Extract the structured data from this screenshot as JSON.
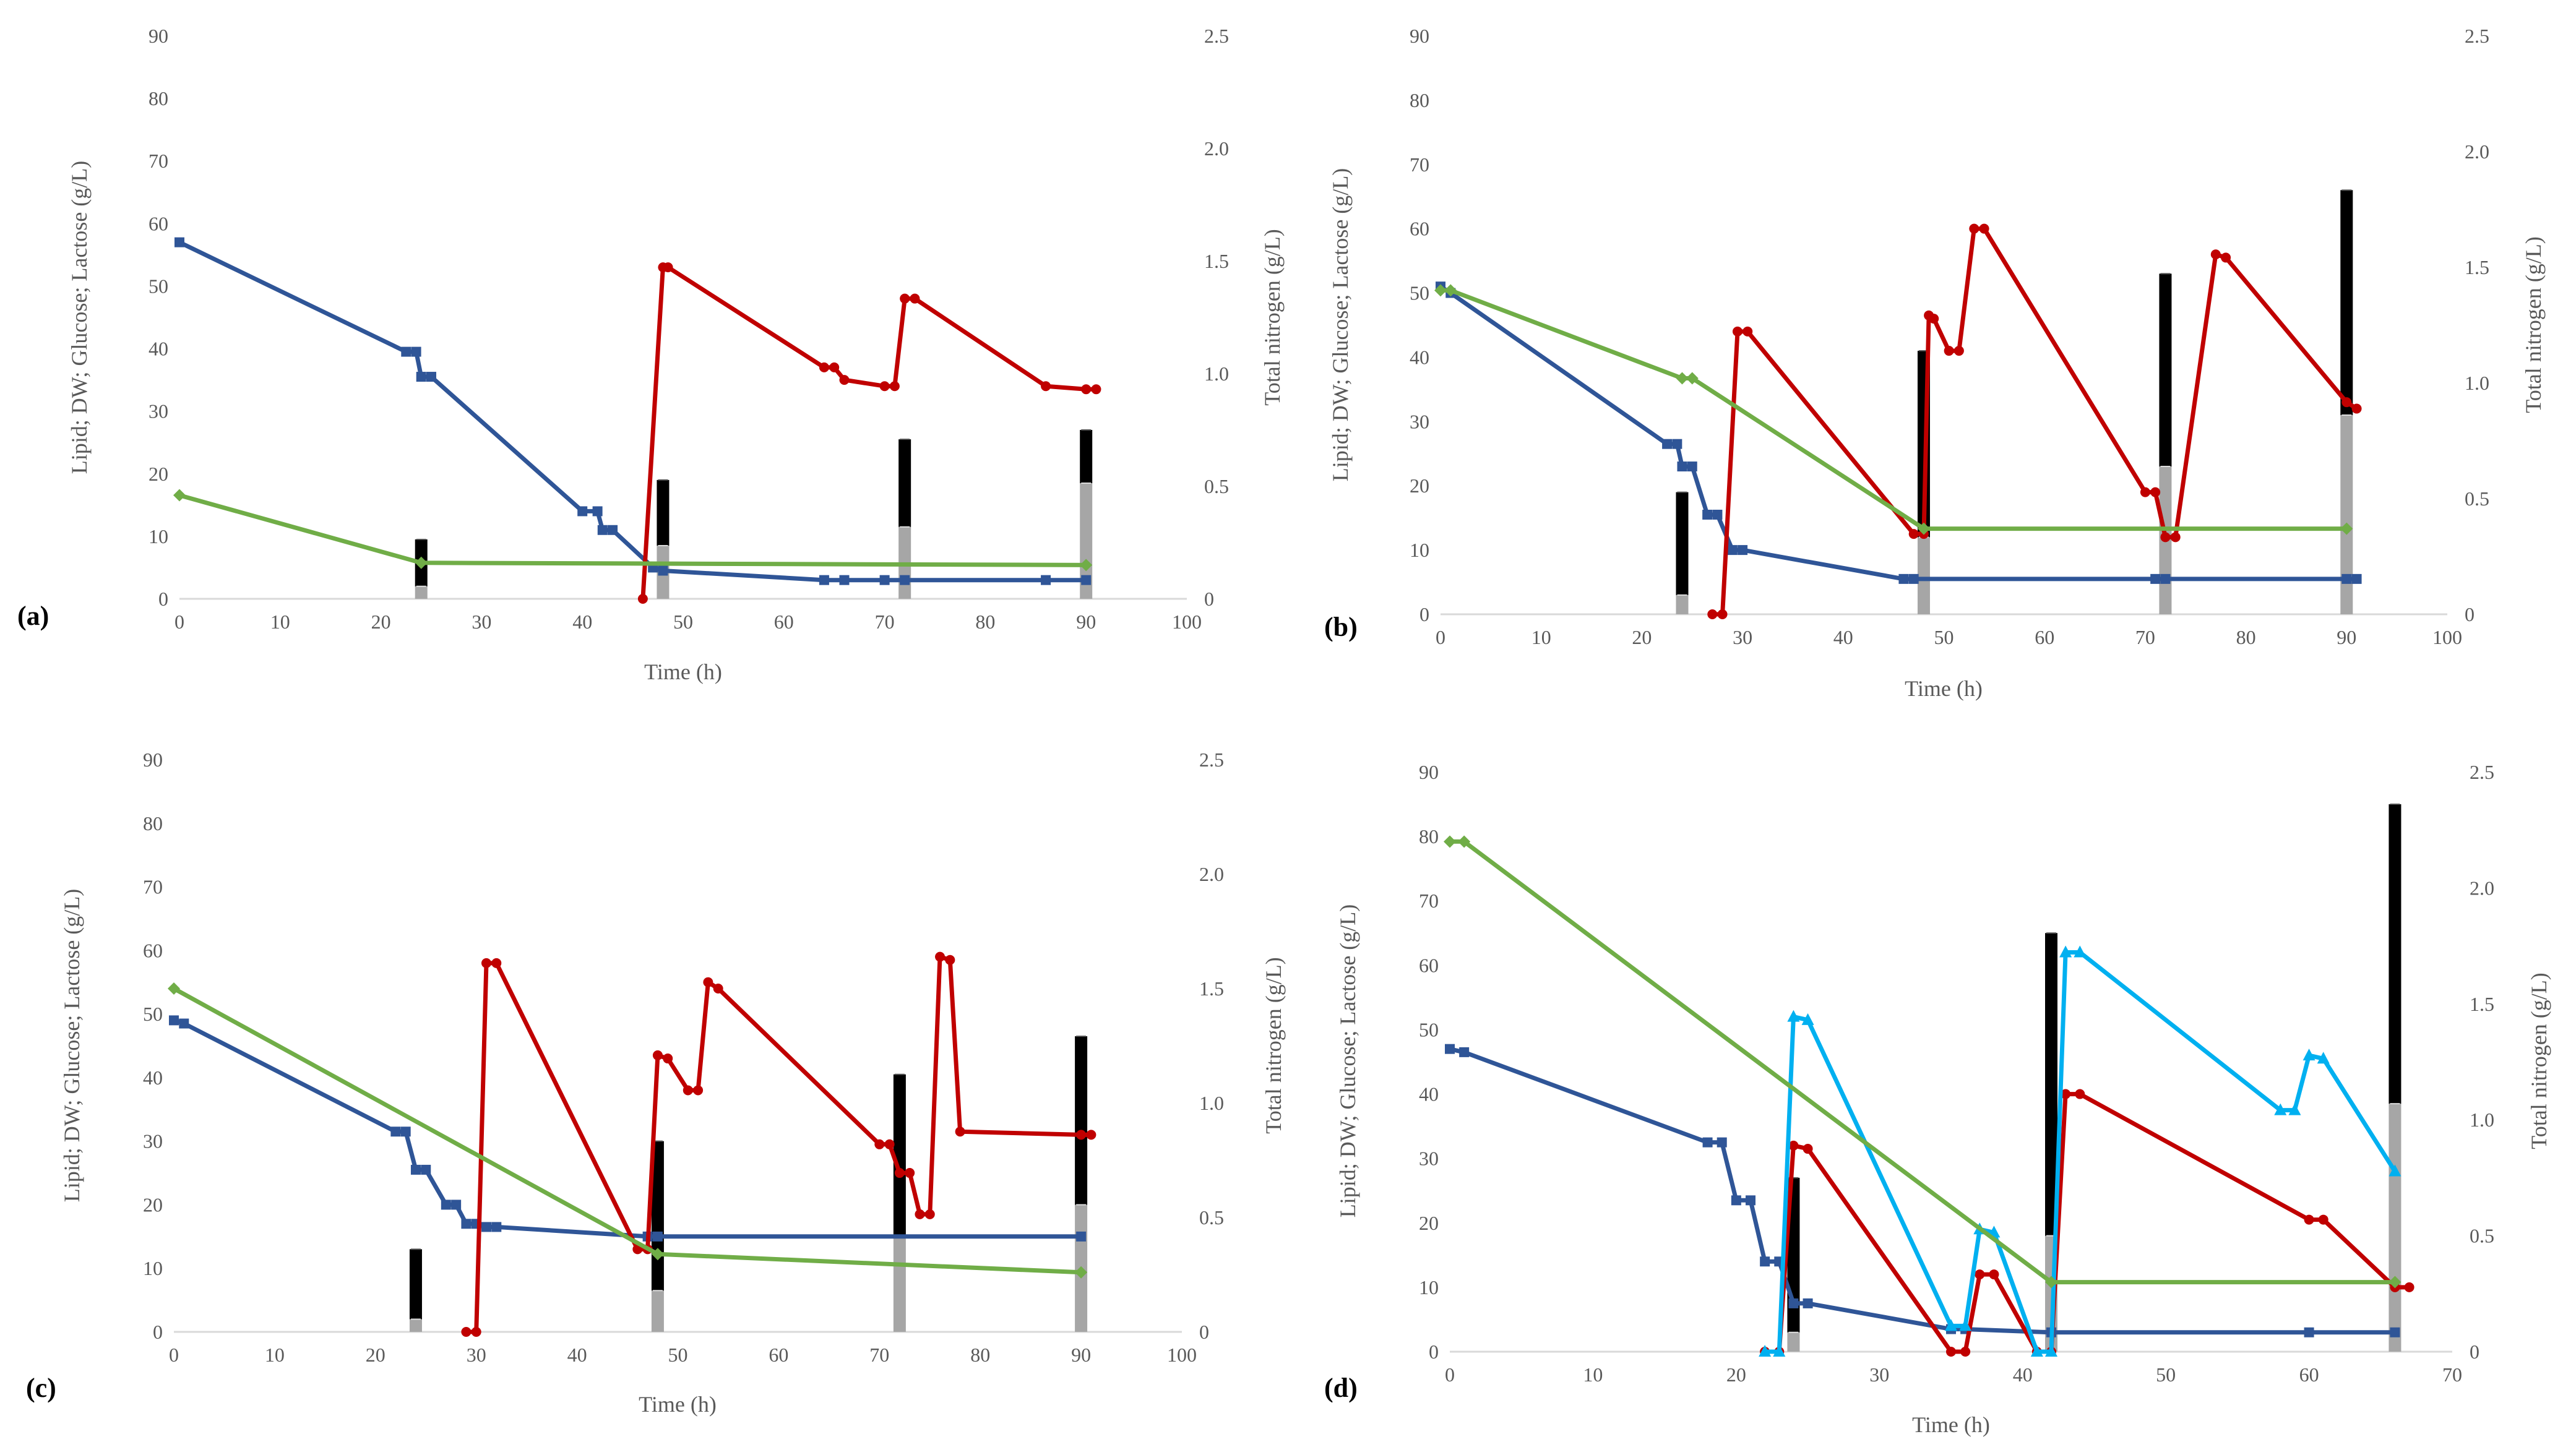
{
  "figure": {
    "colors": {
      "glucose": "#2F5597",
      "lipid_dw_red": "#C00000",
      "nitrogen": "#70AD47",
      "lactose_cyan": "#00B0F0",
      "bar_black": "#000000",
      "bar_grey": "#A6A6A6",
      "axis": "#D9D9D9",
      "text": "#595959"
    },
    "glyphs": {
      "square": "■",
      "circle": "●",
      "diamond": "◆",
      "triangle": "▲"
    }
  },
  "chart_data": [
    {
      "panel": "(a)",
      "type": "line",
      "xlabel": "Time (h)",
      "ylabel": "Lipid; DW; Glucose; Lactose (g/L)",
      "y2label": "Total nitrogen (g/L)",
      "xlim": [
        0,
        100
      ],
      "xticks": [
        "0",
        "10",
        "20",
        "30",
        "40",
        "50",
        "60",
        "70",
        "80",
        "90",
        "100"
      ],
      "ylim": [
        0,
        90
      ],
      "yticks": [
        "0",
        "10",
        "20",
        "30",
        "40",
        "50",
        "60",
        "70",
        "80",
        "90"
      ],
      "y2lim": [
        0,
        2.5
      ],
      "y2ticks": [
        "0",
        "0.5",
        "1.0",
        "1.5",
        "2.0",
        "2.5"
      ],
      "series": [
        {
          "name": "blue",
          "color_key": "glucose",
          "marker": "square",
          "x": [
            0,
            22.5,
            23.5,
            24,
            25,
            40,
            41.5,
            42,
            43,
            47,
            48,
            64,
            66,
            70,
            72,
            86,
            90
          ],
          "y": [
            57,
            39.5,
            39.5,
            35.5,
            35.5,
            14,
            14,
            11,
            11,
            5,
            4.5,
            3,
            3,
            3,
            3,
            3,
            3
          ]
        },
        {
          "name": "red",
          "color_key": "lipid_dw_red",
          "marker": "circle",
          "x": [
            46,
            48,
            48.5,
            64,
            65,
            66,
            70,
            71,
            72,
            73,
            86,
            90,
            91
          ],
          "y": [
            0,
            53,
            53,
            37,
            37,
            35,
            34,
            34,
            48,
            48,
            34,
            33.5,
            33.5
          ]
        },
        {
          "name": "green",
          "color_key": "nitrogen",
          "marker": "diamond",
          "axis": "right",
          "x": [
            0,
            24,
            90
          ],
          "y": [
            0.46,
            0.16,
            0.15
          ]
        }
      ],
      "bars": [
        {
          "x": 24,
          "black_top": 9.5,
          "grey_top": 2
        },
        {
          "x": 48,
          "black_top": 19,
          "grey_top": 8.5
        },
        {
          "x": 72,
          "black_top": 25.5,
          "grey_top": 11.5
        },
        {
          "x": 90,
          "black_top": 27,
          "grey_top": 18.5
        }
      ]
    },
    {
      "panel": "(b)",
      "type": "line",
      "xlabel": "Time (h)",
      "ylabel": "Lipid; DW; Glucose; Lactose (g/L)",
      "y2label": "Total nitrogen (g/L)",
      "xlim": [
        0,
        100
      ],
      "xticks": [
        "0",
        "10",
        "20",
        "30",
        "40",
        "50",
        "60",
        "70",
        "80",
        "90",
        "100"
      ],
      "ylim": [
        0,
        90
      ],
      "yticks": [
        "0",
        "10",
        "20",
        "30",
        "40",
        "50",
        "60",
        "70",
        "80",
        "90"
      ],
      "y2lim": [
        0,
        2.5
      ],
      "y2ticks": [
        "0",
        "0.5",
        "1.0",
        "1.5",
        "2.0",
        "2.5"
      ],
      "series": [
        {
          "name": "blue",
          "color_key": "glucose",
          "marker": "square",
          "x": [
            0,
            1,
            22.5,
            23.5,
            24,
            25,
            26.5,
            27.5,
            29,
            30,
            46,
            47,
            71,
            72,
            90,
            91
          ],
          "y": [
            51,
            50,
            26.5,
            26.5,
            23,
            23,
            15.5,
            15.5,
            10,
            10,
            5.5,
            5.5,
            5.5,
            5.5,
            5.5,
            5.5
          ]
        },
        {
          "name": "red",
          "color_key": "lipid_dw_red",
          "marker": "circle",
          "x": [
            27,
            28,
            29.5,
            30.5,
            47,
            48,
            48.5,
            49,
            50.5,
            51.5,
            53,
            54,
            70,
            71,
            72,
            73,
            77,
            78,
            90,
            91
          ],
          "y": [
            0,
            0,
            44,
            44,
            12.5,
            12.5,
            46.5,
            46,
            41,
            41,
            60,
            60,
            19,
            19,
            12,
            12,
            56,
            55.5,
            33,
            32
          ]
        },
        {
          "name": "green",
          "color_key": "nitrogen",
          "marker": "diamond",
          "axis": "right",
          "x": [
            0,
            1,
            24,
            25,
            48,
            90
          ],
          "y": [
            1.4,
            1.4,
            1.02,
            1.02,
            0.37,
            0.37
          ]
        }
      ],
      "bars": [
        {
          "x": 24,
          "black_top": 19,
          "grey_top": 3
        },
        {
          "x": 48,
          "black_top": 41,
          "grey_top": 12
        },
        {
          "x": 72,
          "black_top": 53,
          "grey_top": 23
        },
        {
          "x": 90,
          "black_top": 66,
          "grey_top": 31
        }
      ]
    },
    {
      "panel": "(c)",
      "type": "line",
      "xlabel": "Time (h)",
      "ylabel": "Lipid; DW; Glucose; Lactose (g/L)",
      "y2label": "Total nitrogen (g/L)",
      "xlim": [
        0,
        100
      ],
      "xticks": [
        "0",
        "10",
        "20",
        "30",
        "40",
        "50",
        "60",
        "70",
        "80",
        "90",
        "100"
      ],
      "ylim": [
        0,
        90
      ],
      "yticks": [
        "0",
        "10",
        "20",
        "30",
        "40",
        "50",
        "60",
        "70",
        "80",
        "90"
      ],
      "y2lim": [
        0,
        2.5
      ],
      "y2ticks": [
        "0",
        "0.5",
        "1.0",
        "1.5",
        "2.0",
        "2.5"
      ],
      "series": [
        {
          "name": "blue",
          "color_key": "glucose",
          "marker": "square",
          "x": [
            0,
            1,
            22,
            23,
            24,
            25,
            27,
            28,
            29,
            30,
            31,
            32,
            47,
            48,
            90
          ],
          "y": [
            49,
            48.5,
            31.5,
            31.5,
            25.5,
            25.5,
            20,
            20,
            17,
            17,
            16.5,
            16.5,
            15,
            15,
            15
          ]
        },
        {
          "name": "red",
          "color_key": "lipid_dw_red",
          "marker": "circle",
          "x": [
            29,
            30,
            31,
            32,
            46,
            47,
            48,
            49,
            51,
            52,
            53,
            54,
            70,
            71,
            72,
            73,
            74,
            75,
            76,
            77,
            78,
            90,
            91
          ],
          "y": [
            0,
            0,
            58,
            58,
            13,
            13,
            43.5,
            43,
            38,
            38,
            55,
            54,
            29.5,
            29.5,
            25,
            25,
            18.5,
            18.5,
            59,
            58.5,
            31.5,
            31,
            31
          ]
        },
        {
          "name": "green",
          "color_key": "nitrogen",
          "marker": "diamond",
          "axis": "right",
          "x": [
            0,
            48,
            90
          ],
          "y": [
            1.5,
            0.34,
            0.26
          ]
        }
      ],
      "bars": [
        {
          "x": 24,
          "black_top": 13,
          "grey_top": 2
        },
        {
          "x": 48,
          "black_top": 30,
          "grey_top": 6.5
        },
        {
          "x": 72,
          "black_top": 40.5,
          "grey_top": 15
        },
        {
          "x": 90,
          "black_top": 46.5,
          "grey_top": 20
        }
      ]
    },
    {
      "panel": "(d)",
      "type": "line",
      "xlabel": "Time (h)",
      "ylabel": "Lipid; DW; Glucose; Lactose (g/L)",
      "y2label": "Total nitrogen (g/L)",
      "xlim": [
        0,
        70
      ],
      "xticks": [
        "0",
        "10",
        "20",
        "30",
        "40",
        "50",
        "60",
        "70"
      ],
      "ylim": [
        0,
        90
      ],
      "yticks": [
        "0",
        "10",
        "20",
        "30",
        "40",
        "50",
        "60",
        "70",
        "80",
        "90"
      ],
      "y2lim": [
        0,
        2.5
      ],
      "y2ticks": [
        "0",
        "0.5",
        "1.0",
        "1.5",
        "2.0",
        "2.5"
      ],
      "series": [
        {
          "name": "blue",
          "color_key": "glucose",
          "marker": "square",
          "x": [
            0,
            1,
            18,
            19,
            20,
            21,
            22,
            23,
            24,
            25,
            35,
            36,
            42,
            60,
            66
          ],
          "y": [
            47,
            46.5,
            32.5,
            32.5,
            23.5,
            23.5,
            14,
            14,
            7.5,
            7.5,
            3.5,
            3.5,
            3,
            3,
            3
          ]
        },
        {
          "name": "red",
          "color_key": "lipid_dw_red",
          "marker": "circle",
          "x": [
            22,
            23,
            24,
            25,
            35,
            36,
            37,
            38,
            41,
            42,
            43,
            44,
            60,
            61,
            66,
            67
          ],
          "y": [
            0,
            0,
            32,
            31.5,
            0,
            0,
            12,
            12,
            0,
            0,
            40,
            40,
            20.5,
            20.5,
            10,
            10
          ]
        },
        {
          "name": "cyan",
          "color_key": "lactose_cyan",
          "marker": "triangle",
          "x": [
            22,
            23,
            24,
            25,
            35,
            36,
            37,
            38,
            41,
            42,
            43,
            44,
            58,
            59,
            60,
            61,
            66
          ],
          "y": [
            0,
            0,
            52,
            51.5,
            4,
            4,
            19,
            18.5,
            0,
            0,
            62,
            62,
            37.5,
            37.5,
            46,
            45.5,
            28
          ]
        },
        {
          "name": "green",
          "color_key": "nitrogen",
          "marker": "diamond",
          "axis": "right",
          "x": [
            0,
            1,
            42,
            66
          ],
          "y": [
            2.2,
            2.2,
            0.3,
            0.3
          ]
        }
      ],
      "bars": [
        {
          "x": 24,
          "black_top": 27,
          "grey_top": 3
        },
        {
          "x": 42,
          "black_top": 65,
          "grey_top": 18
        },
        {
          "x": 66,
          "black_top": 85,
          "grey_top": 38.5
        }
      ]
    }
  ]
}
